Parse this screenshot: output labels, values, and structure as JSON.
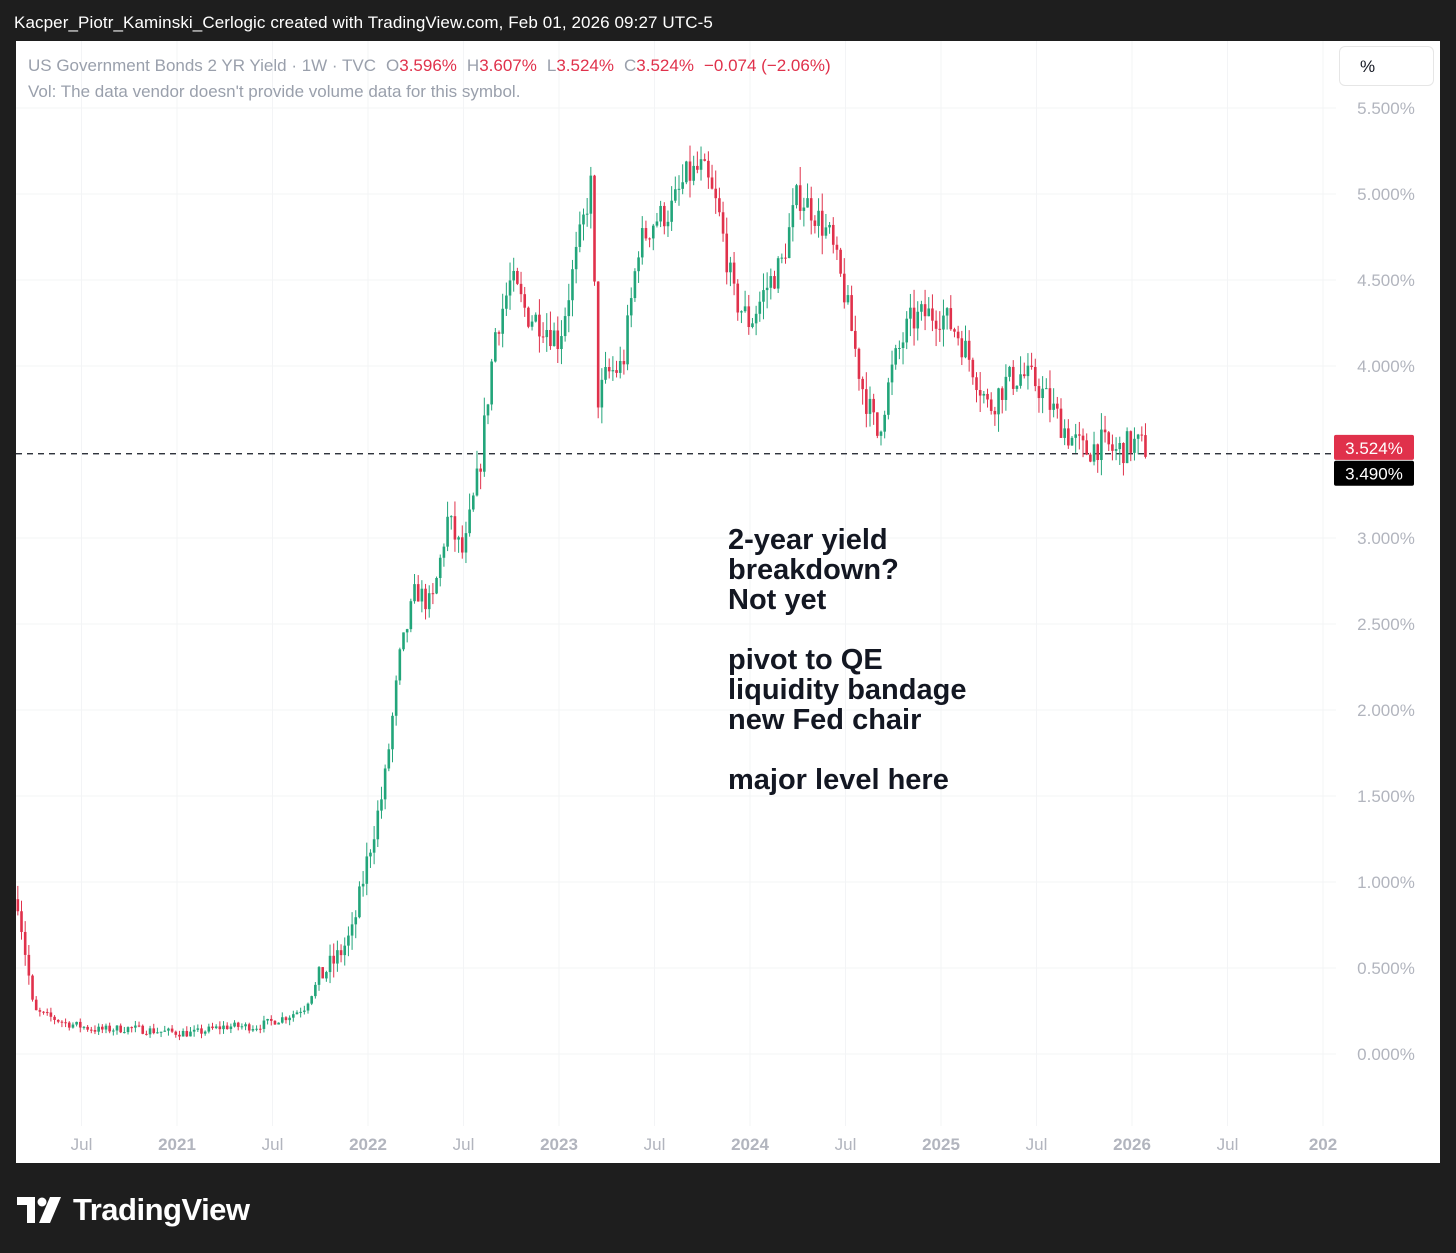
{
  "caption": "Kacper_Piotr_Kaminski_Cerlogic created with TradingView.com, Feb 01, 2026 09:27 UTC-5",
  "legend": {
    "symbol": "US Government Bonds 2 YR Yield · 1W · TVC",
    "o_label": "O",
    "o_value": "3.596%",
    "h_label": "H",
    "h_value": "3.607%",
    "l_label": "L",
    "l_value": "3.524%",
    "c_label": "C",
    "c_value": "3.524%",
    "change": "−0.074 (−2.06%)"
  },
  "vol_note": "Vol: The data vendor doesn't provide volume data for this symbol.",
  "scale_button": "%",
  "annotation": [
    "2-year yield",
    "breakdown?",
    "Not yet",
    "",
    "pivot to QE",
    "liquidity bandage",
    "new Fed chair",
    "",
    "major level here"
  ],
  "brand": "TradingView",
  "colors": {
    "up": "#22a57a",
    "down": "#e0314b",
    "text_muted": "#b2b5be",
    "frame": "#1e1e1e"
  },
  "chart_data": {
    "type": "candlestick",
    "title": "US Government Bonds 2 YR Yield",
    "interval": "1W",
    "ylim": [
      -0.3,
      5.6
    ],
    "y_ticks": [
      "5.500%",
      "5.000%",
      "4.500%",
      "4.000%",
      "3.000%",
      "2.500%",
      "2.000%",
      "1.500%",
      "1.000%",
      "0.500%",
      "0.000%"
    ],
    "x_axis": [
      {
        "label": "Jul",
        "date": "2020-07",
        "bold": false
      },
      {
        "label": "2021",
        "date": "2021-01",
        "bold": true
      },
      {
        "label": "Jul",
        "date": "2021-07",
        "bold": false
      },
      {
        "label": "2022",
        "date": "2022-01",
        "bold": true
      },
      {
        "label": "Jul",
        "date": "2022-07",
        "bold": false
      },
      {
        "label": "2023",
        "date": "2023-01",
        "bold": true
      },
      {
        "label": "Jul",
        "date": "2023-07",
        "bold": false
      },
      {
        "label": "2024",
        "date": "2024-01",
        "bold": true
      },
      {
        "label": "Jul",
        "date": "2024-07",
        "bold": false
      },
      {
        "label": "2025",
        "date": "2025-01",
        "bold": true
      },
      {
        "label": "Jul",
        "date": "2025-07",
        "bold": false
      },
      {
        "label": "2026",
        "date": "2026-01",
        "bold": true
      },
      {
        "label": "Jul",
        "date": "2026-07",
        "bold": false
      },
      {
        "label": "202",
        "date": "2027-01",
        "bold": true
      }
    ],
    "price_line": {
      "value": 3.524,
      "label": "3.524%"
    },
    "level_line": {
      "value": 3.49,
      "label": "3.490%"
    },
    "series_path": [
      [
        "2020-03",
        0.9
      ],
      [
        "2020-04",
        0.25
      ],
      [
        "2020-06",
        0.18
      ],
      [
        "2020-08",
        0.14
      ],
      [
        "2020-10",
        0.15
      ],
      [
        "2020-12",
        0.13
      ],
      [
        "2021-02",
        0.12
      ],
      [
        "2021-04",
        0.16
      ],
      [
        "2021-06",
        0.16
      ],
      [
        "2021-08",
        0.22
      ],
      [
        "2021-09",
        0.27
      ],
      [
        "2021-10",
        0.45
      ],
      [
        "2021-11",
        0.55
      ],
      [
        "2021-12",
        0.7
      ],
      [
        "2022-01",
        1.15
      ],
      [
        "2022-02",
        1.55
      ],
      [
        "2022-03",
        2.3
      ],
      [
        "2022-04",
        2.7
      ],
      [
        "2022-05",
        2.6
      ],
      [
        "2022-06",
        3.1
      ],
      [
        "2022-07",
        2.9
      ],
      [
        "2022-08",
        3.4
      ],
      [
        "2022-09",
        4.2
      ],
      [
        "2022-10",
        4.5
      ],
      [
        "2022-11",
        4.3
      ],
      [
        "2022-12",
        4.25
      ],
      [
        "2023-01",
        4.15
      ],
      [
        "2023-02",
        4.6
      ],
      [
        "2023-03",
        5.05
      ],
      [
        "2023-03-15",
        3.8
      ],
      [
        "2023-04",
        3.95
      ],
      [
        "2023-05",
        4.0
      ],
      [
        "2023-06",
        4.7
      ],
      [
        "2023-07",
        4.85
      ],
      [
        "2023-08",
        4.9
      ],
      [
        "2023-09",
        5.1
      ],
      [
        "2023-10",
        5.15
      ],
      [
        "2023-11",
        4.9
      ],
      [
        "2023-12",
        4.4
      ],
      [
        "2024-01",
        4.25
      ],
      [
        "2024-02",
        4.45
      ],
      [
        "2024-03",
        4.6
      ],
      [
        "2024-04",
        5.0
      ],
      [
        "2024-05",
        4.9
      ],
      [
        "2024-06",
        4.75
      ],
      [
        "2024-07",
        4.4
      ],
      [
        "2024-08",
        3.9
      ],
      [
        "2024-09",
        3.6
      ],
      [
        "2024-10",
        4.0
      ],
      [
        "2024-11",
        4.25
      ],
      [
        "2024-12",
        4.3
      ],
      [
        "2025-01",
        4.3
      ],
      [
        "2025-02",
        4.2
      ],
      [
        "2025-03",
        4.0
      ],
      [
        "2025-04",
        3.75
      ],
      [
        "2025-05",
        3.9
      ],
      [
        "2025-06",
        3.95
      ],
      [
        "2025-07",
        3.9
      ],
      [
        "2025-08",
        3.75
      ],
      [
        "2025-09",
        3.6
      ],
      [
        "2025-10",
        3.5
      ],
      [
        "2025-11",
        3.55
      ],
      [
        "2025-12",
        3.5
      ],
      [
        "2026-01",
        3.55
      ],
      [
        "2026-02",
        3.52
      ]
    ]
  }
}
